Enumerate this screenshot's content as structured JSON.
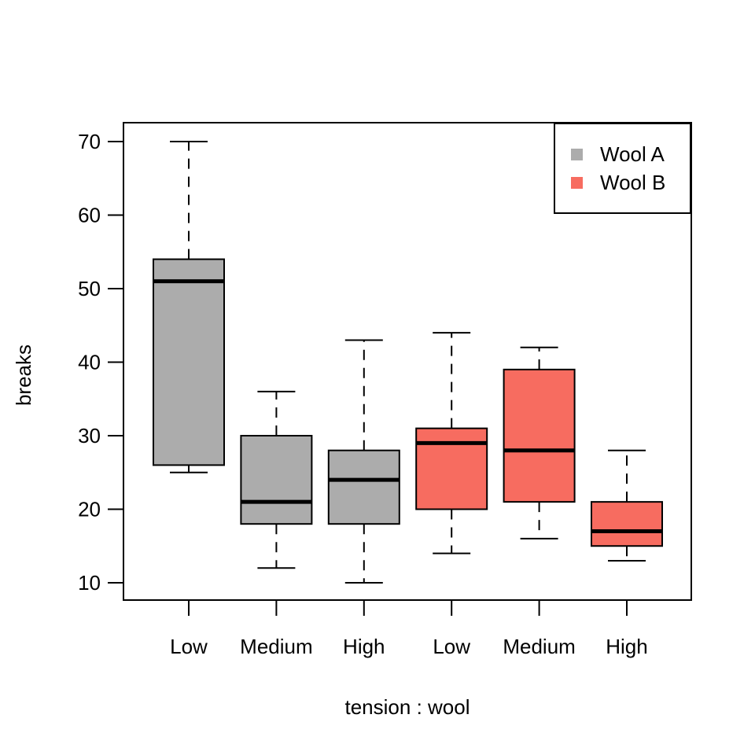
{
  "figure": {
    "background": "#FFFFFF",
    "frame_color": "#000000"
  },
  "chart_data": {
    "type": "boxplot",
    "title": "",
    "xlabel": "tension : wool",
    "ylabel": "breaks",
    "grid": false,
    "y_axis": {
      "min": 10,
      "max": 70,
      "ticks": [
        10,
        20,
        30,
        40,
        50,
        60,
        70
      ]
    },
    "categories": [
      "Low",
      "Medium",
      "High",
      "Low",
      "Medium",
      "High"
    ],
    "boxes": [
      {
        "category": "Low",
        "group": "Wool A",
        "whisker_low": 25,
        "q1": 26,
        "median": 51,
        "q3": 54,
        "whisker_high": 70,
        "color": "#ACACAC"
      },
      {
        "category": "Medium",
        "group": "Wool A",
        "whisker_low": 12,
        "q1": 18,
        "median": 21,
        "q3": 30,
        "whisker_high": 36,
        "color": "#ACACAC"
      },
      {
        "category": "High",
        "group": "Wool A",
        "whisker_low": 10,
        "q1": 18,
        "median": 24,
        "q3": 28,
        "whisker_high": 43,
        "color": "#ACACAC"
      },
      {
        "category": "Low",
        "group": "Wool B",
        "whisker_low": 14,
        "q1": 20,
        "median": 29,
        "q3": 31,
        "whisker_high": 44,
        "color": "#F76C60"
      },
      {
        "category": "Medium",
        "group": "Wool B",
        "whisker_low": 16,
        "q1": 21,
        "median": 28,
        "q3": 39,
        "whisker_high": 42,
        "color": "#F76C60"
      },
      {
        "category": "High",
        "group": "Wool B",
        "whisker_low": 13,
        "q1": 15,
        "median": 17,
        "q3": 21,
        "whisker_high": 28,
        "color": "#F76C60"
      }
    ],
    "legend": {
      "position": "top-right",
      "entries": [
        {
          "label": "Wool A",
          "color": "#ACACAC"
        },
        {
          "label": "Wool B",
          "color": "#F76C60"
        }
      ]
    }
  }
}
